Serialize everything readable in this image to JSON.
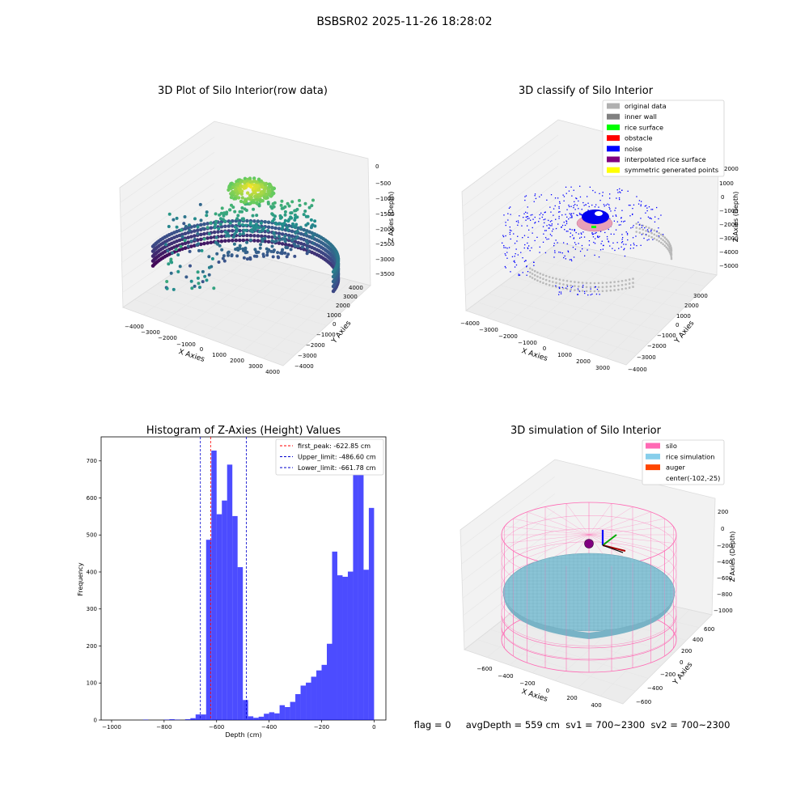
{
  "figure": {
    "suptitle": "BSBSR02 2025-11-26 18:28:02",
    "status_text": "flag = 0     avgDepth = 559 cm  sv1 = 700~2300  sv2 = 700~2300"
  },
  "chart_data": [
    {
      "type": "scatter3d",
      "title": "3D Plot of Silo Interior(row data)",
      "xlabel": "X Axies",
      "ylabel": "Y Axies",
      "zlabel": "Z Axies (Depth)",
      "x_ticks": [
        "−4000",
        "−3000",
        "−2000",
        "−1000",
        "0",
        "1000",
        "2000",
        "3000",
        "4000"
      ],
      "y_ticks": [
        "−4000",
        "−3000",
        "−2000",
        "−1000",
        "0",
        "1000",
        "2000",
        "3000",
        "4000"
      ],
      "z_ticks": [
        "0",
        "−500",
        "−1000",
        "−1500",
        "−2000",
        "−2500",
        "−3000",
        "−3500"
      ],
      "xlim": [
        -4000,
        4000
      ],
      "ylim": [
        -4000,
        4000
      ],
      "zlim": [
        -3500,
        0
      ],
      "colormap": "viridis"
    },
    {
      "type": "scatter3d",
      "title": "3D classify of Silo Interior",
      "xlabel": "X Axies",
      "ylabel": "Y Axies",
      "zlabel": "Z Axies (Depth)",
      "x_ticks": [
        "−4000",
        "−3000",
        "−2000",
        "−1000",
        "0",
        "1000",
        "2000",
        "3000"
      ],
      "y_ticks": [
        "−4000",
        "−3000",
        "−2000",
        "−1000",
        "0",
        "1000",
        "2000",
        "3000"
      ],
      "z_ticks": [
        "2000",
        "1000",
        "0",
        "−1000",
        "−2000",
        "−3000",
        "−4000",
        "−5000"
      ],
      "legend_position": "top-right",
      "legend": [
        {
          "label": "original data",
          "color": "#b0b0b0"
        },
        {
          "label": "inner wall",
          "color": "#808080"
        },
        {
          "label": "rice surface",
          "color": "#00ff00"
        },
        {
          "label": "obstacle",
          "color": "#ff0000"
        },
        {
          "label": "noise",
          "color": "#0000ff"
        },
        {
          "label": "interpolated rice surface",
          "color": "#800080"
        },
        {
          "label": "symmetric generated points",
          "color": "#ffff00"
        }
      ]
    },
    {
      "type": "bar",
      "title": "Histogram of Z-Axies (Height) Values",
      "xlabel": "Depth (cm)",
      "ylabel": "Frequency",
      "xlim": [
        -1040,
        45
      ],
      "ylim": [
        0,
        765
      ],
      "x_ticks": [
        -1000,
        -800,
        -600,
        -400,
        -200,
        0
      ],
      "y_ticks": [
        0,
        100,
        200,
        300,
        400,
        500,
        600,
        700
      ],
      "bar_color": "#0000ff",
      "bins": [
        {
          "x0": -1000,
          "x1": -980,
          "count": 0
        },
        {
          "x0": -980,
          "x1": -960,
          "count": 0
        },
        {
          "x0": -960,
          "x1": -940,
          "count": 0
        },
        {
          "x0": -940,
          "x1": -920,
          "count": 0
        },
        {
          "x0": -920,
          "x1": -900,
          "count": 0
        },
        {
          "x0": -900,
          "x1": -880,
          "count": 0
        },
        {
          "x0": -880,
          "x1": -860,
          "count": 1
        },
        {
          "x0": -860,
          "x1": -840,
          "count": 0
        },
        {
          "x0": -840,
          "x1": -820,
          "count": 0
        },
        {
          "x0": -820,
          "x1": -800,
          "count": 0
        },
        {
          "x0": -800,
          "x1": -780,
          "count": 1
        },
        {
          "x0": -780,
          "x1": -760,
          "count": 2
        },
        {
          "x0": -760,
          "x1": -740,
          "count": 1
        },
        {
          "x0": -740,
          "x1": -720,
          "count": 0
        },
        {
          "x0": -720,
          "x1": -700,
          "count": 2
        },
        {
          "x0": -700,
          "x1": -680,
          "count": 5
        },
        {
          "x0": -680,
          "x1": -660,
          "count": 15
        },
        {
          "x0": -660,
          "x1": -640,
          "count": 15
        },
        {
          "x0": -640,
          "x1": -620,
          "count": 487
        },
        {
          "x0": -620,
          "x1": -600,
          "count": 728
        },
        {
          "x0": -600,
          "x1": -580,
          "count": 556
        },
        {
          "x0": -580,
          "x1": -560,
          "count": 593
        },
        {
          "x0": -560,
          "x1": -540,
          "count": 690
        },
        {
          "x0": -540,
          "x1": -520,
          "count": 551
        },
        {
          "x0": -520,
          "x1": -500,
          "count": 413
        },
        {
          "x0": -500,
          "x1": -480,
          "count": 54
        },
        {
          "x0": -480,
          "x1": -460,
          "count": 10
        },
        {
          "x0": -460,
          "x1": -440,
          "count": 6
        },
        {
          "x0": -440,
          "x1": -420,
          "count": 9
        },
        {
          "x0": -420,
          "x1": -400,
          "count": 17
        },
        {
          "x0": -400,
          "x1": -380,
          "count": 21
        },
        {
          "x0": -380,
          "x1": -360,
          "count": 18
        },
        {
          "x0": -360,
          "x1": -340,
          "count": 40
        },
        {
          "x0": -340,
          "x1": -320,
          "count": 35
        },
        {
          "x0": -320,
          "x1": -300,
          "count": 49
        },
        {
          "x0": -300,
          "x1": -280,
          "count": 70
        },
        {
          "x0": -280,
          "x1": -260,
          "count": 93
        },
        {
          "x0": -260,
          "x1": -240,
          "count": 101
        },
        {
          "x0": -240,
          "x1": -220,
          "count": 117
        },
        {
          "x0": -220,
          "x1": -200,
          "count": 134
        },
        {
          "x0": -200,
          "x1": -180,
          "count": 149
        },
        {
          "x0": -180,
          "x1": -160,
          "count": 206
        },
        {
          "x0": -160,
          "x1": -140,
          "count": 455
        },
        {
          "x0": -140,
          "x1": -120,
          "count": 391
        },
        {
          "x0": -120,
          "x1": -100,
          "count": 387
        },
        {
          "x0": -100,
          "x1": -80,
          "count": 401
        },
        {
          "x0": -80,
          "x1": -60,
          "count": 688
        },
        {
          "x0": -60,
          "x1": -40,
          "count": 679
        },
        {
          "x0": -40,
          "x1": -20,
          "count": 406
        },
        {
          "x0": -20,
          "x1": 0,
          "count": 573
        }
      ],
      "vlines": [
        {
          "x": -622.85,
          "color": "#ff0000",
          "label": "first_peak: -622.85 cm"
        },
        {
          "x": -486.6,
          "color": "#0000cc",
          "label": "Upper_limit: -486.60 cm"
        },
        {
          "x": -661.78,
          "color": "#0000cc",
          "label": "Lower_limit: -661.78 cm"
        }
      ],
      "legend_position": "top-right"
    },
    {
      "type": "surface3d",
      "title": "3D simulation of Silo Interior",
      "xlabel": "X Axies",
      "ylabel": "Y Axies",
      "zlabel": "Z Axies (Depth)",
      "x_ticks": [
        "−600",
        "−400",
        "−200",
        "0",
        "200",
        "400"
      ],
      "y_ticks": [
        "−600",
        "−400",
        "−200",
        "0",
        "200",
        "400",
        "600"
      ],
      "z_ticks": [
        "200",
        "0",
        "−200",
        "−400",
        "−600",
        "−800",
        "−1000"
      ],
      "legend_position": "top-right",
      "legend": [
        {
          "label": "silo",
          "color": "#ff69b4"
        },
        {
          "label": "rice simulation",
          "color": "#87ceeb"
        },
        {
          "label": "auger",
          "color": "#ff4500"
        },
        {
          "label": "center(-102,-25)",
          "color": ""
        }
      ]
    }
  ]
}
